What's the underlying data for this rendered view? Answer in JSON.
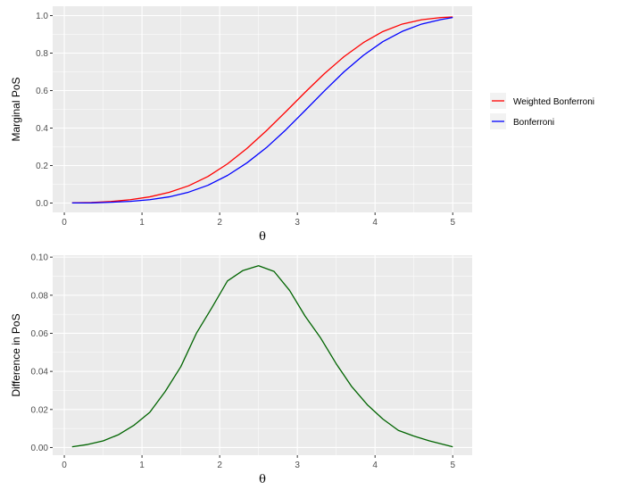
{
  "colors": {
    "panel_background": "#EBEBEB",
    "grid_major": "#FFFFFF",
    "weighted_bonferroni": "#FF0000",
    "bonferroni": "#0000FF",
    "difference": "#006400"
  },
  "chart_data": [
    {
      "type": "line",
      "xlabel": "θ",
      "ylabel": "Marginal PoS",
      "xlim": [
        -0.15,
        5.25
      ],
      "ylim": [
        -0.05,
        1.05
      ],
      "x_ticks": [
        0,
        1,
        2,
        3,
        4,
        5
      ],
      "y_ticks": [
        0.0,
        0.2,
        0.4,
        0.6,
        0.8,
        1.0
      ],
      "x_tick_labels": [
        "0",
        "1",
        "2",
        "3",
        "4",
        "5"
      ],
      "y_tick_labels": [
        "0.0",
        "0.2",
        "0.4",
        "0.6",
        "0.8",
        "1.0"
      ],
      "grid": true,
      "legend": {
        "position": "right",
        "entries": [
          "Weighted Bonferroni",
          "Bonferroni"
        ]
      },
      "x": [
        0.1,
        0.35,
        0.6,
        0.85,
        1.1,
        1.35,
        1.6,
        1.85,
        2.1,
        2.35,
        2.6,
        2.85,
        3.1,
        3.35,
        3.6,
        3.85,
        4.1,
        4.35,
        4.6,
        4.85,
        5.0
      ],
      "series": [
        {
          "name": "Weighted Bonferroni",
          "color": "#FF0000",
          "values": [
            0.001,
            0.003,
            0.008,
            0.018,
            0.033,
            0.057,
            0.092,
            0.142,
            0.209,
            0.291,
            0.385,
            0.487,
            0.591,
            0.691,
            0.781,
            0.856,
            0.915,
            0.955,
            0.978,
            0.99,
            0.993
          ]
        },
        {
          "name": "Bonferroni",
          "color": "#0000FF",
          "values": [
            0.0005,
            0.001,
            0.004,
            0.009,
            0.018,
            0.033,
            0.058,
            0.095,
            0.147,
            0.214,
            0.295,
            0.39,
            0.494,
            0.599,
            0.7,
            0.788,
            0.861,
            0.916,
            0.955,
            0.979,
            0.99
          ]
        }
      ]
    },
    {
      "type": "line",
      "xlabel": "θ",
      "ylabel": "Difference in PoS",
      "xlim": [
        -0.15,
        5.25
      ],
      "ylim": [
        -0.004,
        0.101
      ],
      "x_ticks": [
        0,
        1,
        2,
        3,
        4,
        5
      ],
      "y_ticks": [
        0.0,
        0.02,
        0.04,
        0.06,
        0.08,
        0.1
      ],
      "x_tick_labels": [
        "0",
        "1",
        "2",
        "3",
        "4",
        "5"
      ],
      "y_tick_labels": [
        "0.00",
        "0.02",
        "0.04",
        "0.06",
        "0.08",
        "0.10"
      ],
      "grid": true,
      "x": [
        0.1,
        0.3,
        0.5,
        0.7,
        0.9,
        1.1,
        1.3,
        1.5,
        1.7,
        1.9,
        2.1,
        2.3,
        2.5,
        2.7,
        2.9,
        3.1,
        3.3,
        3.5,
        3.7,
        3.9,
        4.1,
        4.3,
        4.5,
        4.7,
        5.0
      ],
      "series": [
        {
          "color": "#006400",
          "values": [
            0.0004,
            0.0016,
            0.0035,
            0.0068,
            0.0118,
            0.0185,
            0.0295,
            0.0425,
            0.06,
            0.0735,
            0.0875,
            0.093,
            0.0955,
            0.0925,
            0.0825,
            0.069,
            0.0575,
            0.044,
            0.032,
            0.0225,
            0.015,
            0.009,
            0.006,
            0.0035,
            0.0004
          ]
        }
      ]
    }
  ]
}
